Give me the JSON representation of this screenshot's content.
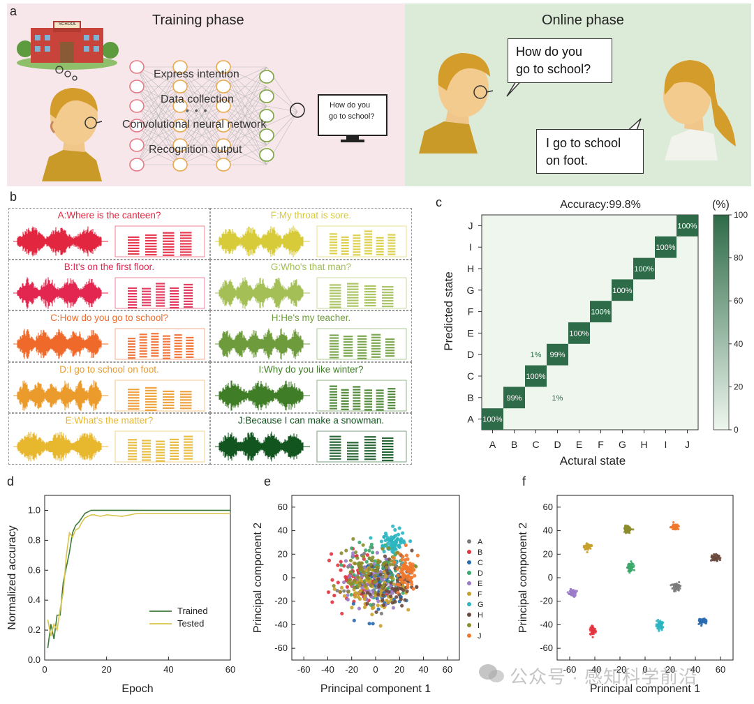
{
  "panel_a": {
    "letter": "a",
    "training_title": "Training phase",
    "online_title": "Online phase",
    "school_sign": "SCHOOL",
    "nn_labels": [
      "Express intention",
      "Data collection",
      "Convolutional neural network",
      "Recognition output"
    ],
    "monitor_text": [
      "How do you",
      "go to school?"
    ],
    "bubble1": [
      "How do you",
      "go to school?"
    ],
    "bubble2": [
      "I go to school",
      "on foot."
    ],
    "colors": {
      "training_bg": "#f7e6ea",
      "online_bg": "#dcebd7",
      "node_red": "#e57a86",
      "node_orange": "#e9a84a",
      "node_green": "#7aa43c"
    }
  },
  "panel_b": {
    "letter": "b",
    "sentences": [
      {
        "text": "A:Where is the canteen?",
        "color": "#e3263f"
      },
      {
        "text": "B:It's on the first floor.",
        "color": "#e3264f"
      },
      {
        "text": "C:How do you go to school?",
        "color": "#ef6a2a"
      },
      {
        "text": "D:I go to school on foot.",
        "color": "#eb9a2c"
      },
      {
        "text": "E:What's the matter?",
        "color": "#e7b72e"
      },
      {
        "text": "F:My throat is sore.",
        "color": "#d8cb3a"
      },
      {
        "text": "G:Who's that man?",
        "color": "#a3bf55"
      },
      {
        "text": "H:He's my teacher.",
        "color": "#6e9c3c"
      },
      {
        "text": "I:Why do you like winter?",
        "color": "#3f7d26"
      },
      {
        "text": "J:Because I can make a snowman.",
        "color": "#12551f"
      }
    ]
  },
  "panel_c": {
    "letter": "c",
    "title": "Accuracy:99.8%",
    "unit": "(%)",
    "xlabel": "Actural state",
    "ylabel": "Predicted state",
    "labels": [
      "A",
      "B",
      "C",
      "D",
      "E",
      "F",
      "G",
      "H",
      "I",
      "J"
    ],
    "colorbar_ticks": [
      "0",
      "20",
      "40",
      "60",
      "80",
      "100"
    ],
    "diag_labels": [
      "100%",
      "99%",
      "100%",
      "99%",
      "100%",
      "100%",
      "100%",
      "100%",
      "100%",
      "100%"
    ],
    "off_labels": [
      {
        "text": "1%",
        "col": 3,
        "row": 1
      },
      {
        "text": "1%",
        "col": 2,
        "row": 3
      }
    ],
    "colors": {
      "high": "#2e6b48",
      "low": "#eef6ee"
    }
  },
  "chart_data": [
    {
      "type": "line",
      "panel": "d",
      "xlabel": "Epoch",
      "ylabel": "Normalized accuracy",
      "xlim": [
        0,
        60
      ],
      "ylim": [
        0,
        1.1
      ],
      "x_ticks": [
        "0",
        "20",
        "40",
        "60"
      ],
      "y_ticks": [
        "0.0",
        "0.2",
        "0.4",
        "0.6",
        "0.8",
        "1.0"
      ],
      "legend_position": "bottom-right",
      "series": [
        {
          "name": "Trained",
          "color": "#3d7a3a",
          "x": [
            1,
            2,
            3,
            4,
            5,
            6,
            7,
            8,
            9,
            10,
            11,
            12,
            13,
            14,
            15,
            16,
            18,
            20,
            25,
            30,
            40,
            50,
            60
          ],
          "y": [
            0.08,
            0.24,
            0.14,
            0.3,
            0.3,
            0.52,
            0.62,
            0.72,
            0.85,
            0.9,
            0.92,
            0.95,
            0.98,
            0.99,
            1.0,
            1.0,
            1.0,
            1.0,
            1.0,
            1.0,
            1.0,
            1.0,
            1.0
          ]
        },
        {
          "name": "Tested",
          "color": "#d9c44b",
          "x": [
            1,
            2,
            3,
            4,
            5,
            6,
            7,
            8,
            9,
            10,
            11,
            12,
            13,
            14,
            15,
            16,
            18,
            20,
            25,
            30,
            40,
            50,
            60
          ],
          "y": [
            0.27,
            0.16,
            0.24,
            0.2,
            0.34,
            0.45,
            0.7,
            0.85,
            0.82,
            0.87,
            0.88,
            0.92,
            0.95,
            0.96,
            0.97,
            0.97,
            0.96,
            0.97,
            0.96,
            0.98,
            0.98,
            0.98,
            0.98
          ]
        }
      ]
    },
    {
      "type": "scatter",
      "panel": "e",
      "xlabel": "Principal component 1",
      "ylabel": "Principal component 2",
      "xlim": [
        -70,
        70
      ],
      "ylim": [
        -70,
        70
      ],
      "ticks": [
        "-60",
        "-40",
        "-20",
        "0",
        "20",
        "40",
        "60"
      ],
      "legend_position": "right",
      "series": [
        {
          "name": "A",
          "color": "#7b7b7b",
          "center": [
            0,
            0
          ],
          "spread": [
            22,
            22
          ]
        },
        {
          "name": "B",
          "color": "#e2343e",
          "center": [
            -15,
            0
          ],
          "spread": [
            20,
            20
          ]
        },
        {
          "name": "C",
          "color": "#2a6bb0",
          "center": [
            5,
            -5
          ],
          "spread": [
            22,
            20
          ]
        },
        {
          "name": "D",
          "color": "#3aa96a",
          "center": [
            0,
            5
          ],
          "spread": [
            22,
            22
          ]
        },
        {
          "name": "E",
          "color": "#9b7bc6",
          "center": [
            -5,
            -5
          ],
          "spread": [
            22,
            20
          ]
        },
        {
          "name": "F",
          "color": "#c8a12b",
          "center": [
            -5,
            -10
          ],
          "spread": [
            24,
            18
          ]
        },
        {
          "name": "G",
          "color": "#2bb5c0",
          "center": [
            15,
            30
          ],
          "spread": [
            10,
            10
          ]
        },
        {
          "name": "H",
          "color": "#6b4a3e",
          "center": [
            10,
            -5
          ],
          "spread": [
            20,
            20
          ]
        },
        {
          "name": "I",
          "color": "#8c8c2a",
          "center": [
            -5,
            10
          ],
          "spread": [
            22,
            20
          ]
        },
        {
          "name": "J",
          "color": "#f0782c",
          "center": [
            25,
            5
          ],
          "spread": [
            10,
            14
          ]
        }
      ]
    },
    {
      "type": "scatter",
      "panel": "f",
      "xlabel": "Principal component 1",
      "ylabel": "Principal component 2",
      "xlim": [
        -70,
        70
      ],
      "ylim": [
        -70,
        70
      ],
      "ticks": [
        "-60",
        "-40",
        "-20",
        "0",
        "20",
        "40",
        "60"
      ],
      "series": [
        {
          "name": "A",
          "color": "#7b7b7b",
          "center": [
            25,
            -8
          ],
          "spread": [
            3,
            2.5
          ]
        },
        {
          "name": "B",
          "color": "#e2343e",
          "center": [
            -42,
            -45
          ],
          "spread": [
            2.2,
            3
          ]
        },
        {
          "name": "C",
          "color": "#2a6bb0",
          "center": [
            46,
            -37
          ],
          "spread": [
            3,
            2
          ]
        },
        {
          "name": "D",
          "color": "#3aa96a",
          "center": [
            -12,
            9
          ],
          "spread": [
            2.2,
            4
          ]
        },
        {
          "name": "E",
          "color": "#9b7bc6",
          "center": [
            -58,
            -13
          ],
          "spread": [
            2.5,
            2.5
          ]
        },
        {
          "name": "F",
          "color": "#c8a12b",
          "center": [
            -46,
            26
          ],
          "spread": [
            3,
            2.5
          ]
        },
        {
          "name": "G",
          "color": "#2bb5c0",
          "center": [
            12,
            -40
          ],
          "spread": [
            2.2,
            4
          ]
        },
        {
          "name": "H",
          "color": "#6b4a3e",
          "center": [
            56,
            17
          ],
          "spread": [
            3,
            2.5
          ]
        },
        {
          "name": "I",
          "color": "#8c8c2a",
          "center": [
            -14,
            41
          ],
          "spread": [
            3,
            2.5
          ]
        },
        {
          "name": "J",
          "color": "#f0782c",
          "center": [
            24,
            43
          ],
          "spread": [
            3,
            2
          ]
        }
      ]
    }
  ],
  "watermark": "公众号 · 感知科学前沿"
}
